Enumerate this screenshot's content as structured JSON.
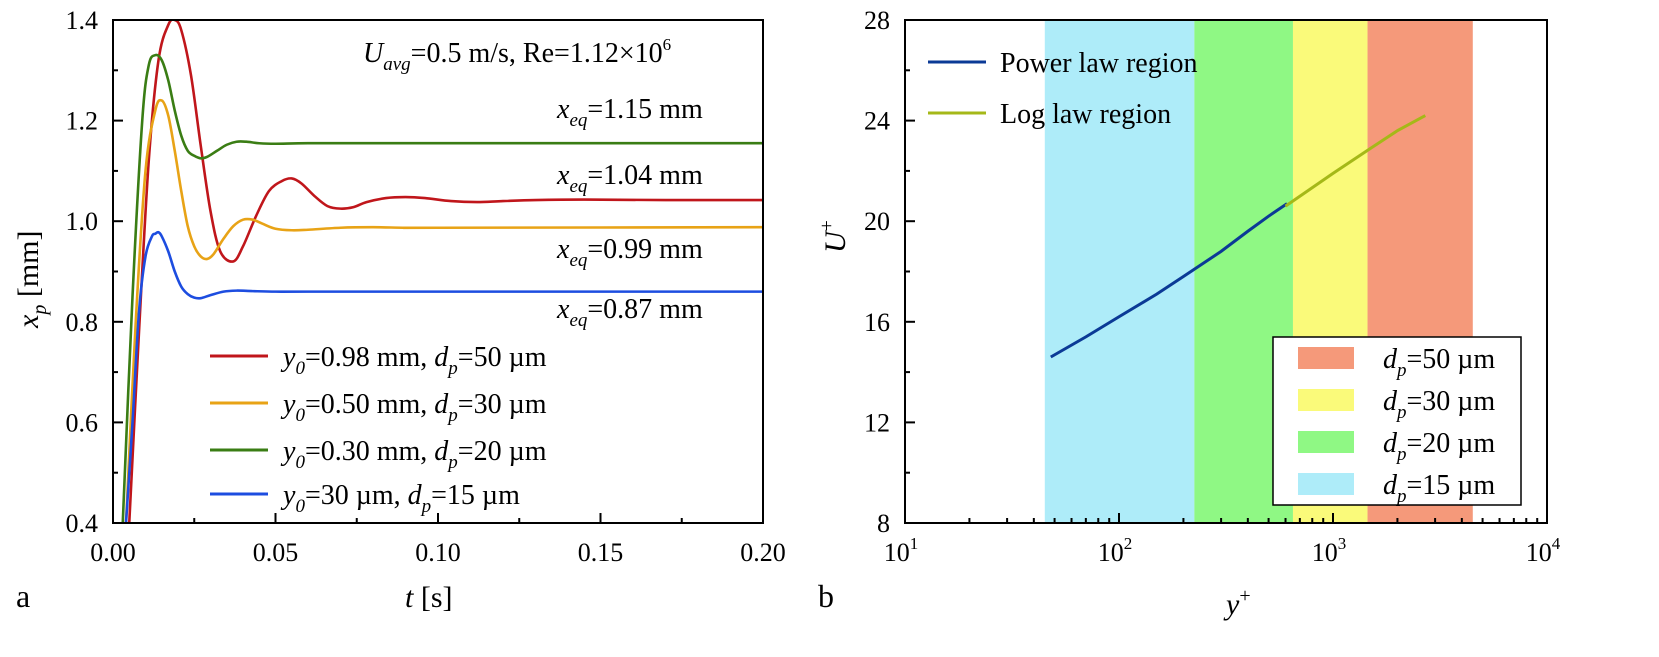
{
  "chart_data": [
    {
      "panel": "a",
      "type": "line",
      "xlabel": "t [s]",
      "xlabel_var": "t",
      "xlabel_unit": " [s]",
      "ylabel": "x_p [mm]",
      "ylabel_var": "x",
      "ylabel_sub": "p",
      "ylabel_unit": " [mm]",
      "xlim": [
        0,
        0.2
      ],
      "ylim": [
        0.4,
        1.4
      ],
      "xticks": [
        0,
        0.05,
        0.1,
        0.15,
        0.2
      ],
      "xtick_labels": [
        "0.00",
        "0.05",
        "0.10",
        "0.15",
        "0.20"
      ],
      "yticks": [
        0.4,
        0.6,
        0.8,
        1.0,
        1.2,
        1.4
      ],
      "ytick_labels": [
        "0.4",
        "0.6",
        "0.8",
        "1.0",
        "1.2",
        "1.4"
      ],
      "header": {
        "u_sym": "U",
        "u_sub": "avg",
        "u_text": "=0.5 m/s, Re=1.12×10",
        "u_exp": "6"
      },
      "annotations": [
        {
          "sym": "x",
          "sub": "eq",
          "text": "=1.15 mm",
          "value": 1.15
        },
        {
          "sym": "x",
          "sub": "eq",
          "text": "=1.04 mm",
          "value": 1.04
        },
        {
          "sym": "x",
          "sub": "eq",
          "text": "=0.99 mm",
          "value": 0.99
        },
        {
          "sym": "x",
          "sub": "eq",
          "text": "=0.87 mm",
          "value": 0.87
        }
      ],
      "series": [
        {
          "name": "y0=0.98 mm, dp=50 µm",
          "y0_text": "=0.98 mm, ",
          "dp_text": "=50 µm",
          "color": "#c0161b",
          "x": [
            0.005,
            0.008,
            0.011,
            0.014,
            0.017,
            0.019,
            0.021,
            0.024,
            0.027,
            0.03,
            0.033,
            0.037,
            0.04,
            0.044,
            0.048,
            0.052,
            0.055,
            0.058,
            0.062,
            0.066,
            0.07,
            0.074,
            0.078,
            0.084,
            0.09,
            0.096,
            0.104,
            0.112,
            0.12,
            0.13,
            0.145,
            0.17,
            0.2
          ],
          "y": [
            0.4,
            0.78,
            1.12,
            1.32,
            1.39,
            1.4,
            1.38,
            1.29,
            1.15,
            1.02,
            0.94,
            0.92,
            0.95,
            1.01,
            1.06,
            1.08,
            1.085,
            1.075,
            1.05,
            1.03,
            1.025,
            1.028,
            1.038,
            1.046,
            1.048,
            1.046,
            1.04,
            1.038,
            1.04,
            1.042,
            1.043,
            1.042,
            1.042
          ]
        },
        {
          "name": "y0=0.50 mm, dp=30 µm",
          "y0_text": "=0.50 mm, ",
          "dp_text": "=30 µm",
          "color": "#e8a316",
          "x": [
            0.004,
            0.007,
            0.01,
            0.013,
            0.015,
            0.017,
            0.019,
            0.021,
            0.023,
            0.025,
            0.027,
            0.029,
            0.031,
            0.034,
            0.037,
            0.04,
            0.043,
            0.046,
            0.05,
            0.055,
            0.06,
            0.07,
            0.08,
            0.09,
            0.1,
            0.2
          ],
          "y": [
            0.4,
            0.8,
            1.1,
            1.22,
            1.24,
            1.21,
            1.14,
            1.06,
            0.99,
            0.95,
            0.93,
            0.925,
            0.935,
            0.965,
            0.99,
            1.003,
            1.003,
            0.995,
            0.985,
            0.982,
            0.983,
            0.987,
            0.988,
            0.987,
            0.987,
            0.988
          ]
        },
        {
          "name": "y0=0.30 mm, dp=20 µm",
          "y0_text": "=0.30 mm, ",
          "dp_text": "=20 µm",
          "color": "#3a7d14",
          "x": [
            0.003,
            0.006,
            0.009,
            0.011,
            0.013,
            0.015,
            0.017,
            0.019,
            0.021,
            0.023,
            0.025,
            0.027,
            0.029,
            0.032,
            0.035,
            0.038,
            0.041,
            0.045,
            0.05,
            0.06,
            0.08,
            0.1,
            0.2
          ],
          "y": [
            0.4,
            0.85,
            1.2,
            1.31,
            1.33,
            1.32,
            1.28,
            1.22,
            1.17,
            1.14,
            1.13,
            1.125,
            1.128,
            1.14,
            1.152,
            1.158,
            1.158,
            1.155,
            1.154,
            1.155,
            1.155,
            1.155,
            1.155
          ]
        },
        {
          "name": "y0=30 µm, dp=15 µm",
          "y0_text": "=30 µm, ",
          "dp_text": "=15 µm",
          "color": "#1d4de0",
          "x": [
            0.004,
            0.006,
            0.008,
            0.01,
            0.012,
            0.013,
            0.014,
            0.015,
            0.017,
            0.019,
            0.021,
            0.023,
            0.025,
            0.027,
            0.03,
            0.034,
            0.038,
            0.043,
            0.05,
            0.06,
            0.1,
            0.2
          ],
          "y": [
            0.4,
            0.6,
            0.82,
            0.93,
            0.97,
            0.975,
            0.978,
            0.97,
            0.94,
            0.9,
            0.87,
            0.855,
            0.848,
            0.847,
            0.853,
            0.86,
            0.862,
            0.861,
            0.86,
            0.86,
            0.86,
            0.86
          ]
        }
      ],
      "legend_position": "bottom-left",
      "panel_label": "a"
    },
    {
      "panel": "b",
      "type": "line",
      "xscale": "log",
      "xlim": [
        10,
        10000
      ],
      "ylim": [
        8,
        28
      ],
      "xlabel": "y+",
      "xlabel_var": "y",
      "xlabel_sup": "+",
      "ylabel": "U+",
      "ylabel_var": "U",
      "ylabel_sup": "+",
      "xtick_base": "10",
      "xtick_exponents": [
        "1",
        "2",
        "3",
        "4"
      ],
      "yticks": [
        8,
        12,
        16,
        20,
        24,
        28
      ],
      "ytick_labels": [
        "8",
        "12",
        "16",
        "20",
        "24",
        "28"
      ],
      "bands": [
        {
          "name": "dp=15 µm",
          "label": "=15 µm",
          "from": 45,
          "to": 225,
          "color": "#aeecf9"
        },
        {
          "name": "dp=20 µm",
          "label": "=20 µm",
          "from": 225,
          "to": 650,
          "color": "#8ff884"
        },
        {
          "name": "dp=30 µm",
          "label": "=30 µm",
          "from": 650,
          "to": 1450,
          "color": "#fafa7a"
        },
        {
          "name": "dp=50 µm",
          "label": "=50 µm",
          "from": 1450,
          "to": 4500,
          "color": "#f5997a"
        }
      ],
      "band_legend_order": [
        3,
        2,
        1,
        0
      ],
      "series": [
        {
          "name": "Power law region",
          "color": "#0b3a96",
          "x": [
            48,
            70,
            100,
            150,
            200,
            300,
            400,
            500,
            610
          ],
          "y": [
            14.6,
            15.4,
            16.2,
            17.1,
            17.8,
            18.8,
            19.6,
            20.2,
            20.7
          ]
        },
        {
          "name": "Log law region",
          "color": "#a5b818",
          "x": [
            600,
            1000,
            1500,
            2000,
            2700
          ],
          "y": [
            20.6,
            21.9,
            22.9,
            23.6,
            24.2
          ]
        }
      ],
      "legend_position": "top-left",
      "band_legend_position": "bottom-right",
      "panel_label": "b"
    }
  ]
}
